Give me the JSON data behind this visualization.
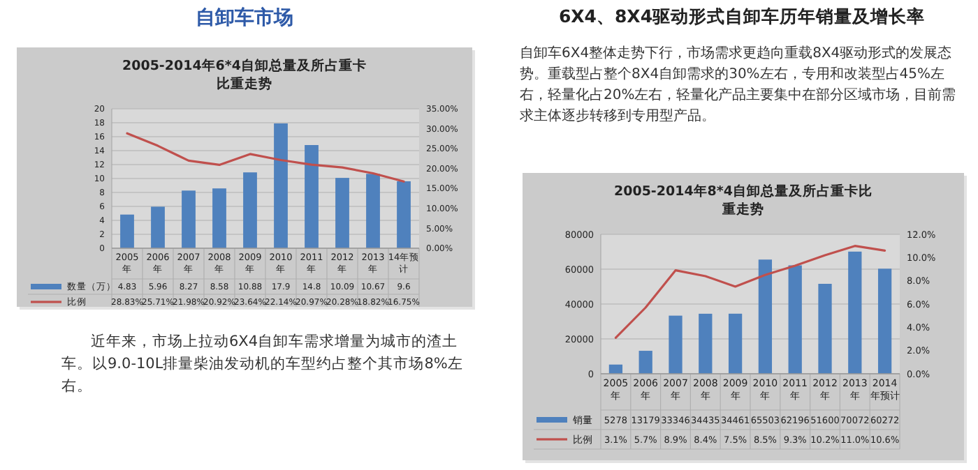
{
  "chart_data": [
    {
      "type": "other",
      "title": "自卸车市场"
    },
    {
      "type": "bar",
      "title": "2005-2014年6*4自卸总量及所占重卡比重走势",
      "categories": [
        "2005年",
        "2006年",
        "2007年",
        "2008年",
        "2009年",
        "2010年",
        "2011年",
        "2012年",
        "2013年",
        "14年预计"
      ],
      "series": [
        {
          "name": "数量（万）",
          "type": "bar",
          "color": "#4f81bd",
          "values": [
            4.83,
            5.96,
            8.27,
            8.58,
            10.88,
            17.9,
            14.8,
            10.09,
            10.67,
            9.6
          ]
        },
        {
          "name": "比例",
          "type": "line",
          "axis": "y2",
          "color": "#c0504d",
          "values": [
            28.83,
            25.71,
            21.98,
            20.92,
            23.64,
            22.14,
            20.97,
            20.28,
            18.82,
            16.75
          ],
          "value_labels": [
            "28.83%",
            "25.71%",
            "21.98%",
            "20.92%",
            "23.64%",
            "22.14%",
            "20.97%",
            "20.28%",
            "18.82%",
            "16.75%"
          ]
        }
      ],
      "ylim": [
        0,
        20
      ],
      "yticks": [
        0,
        2,
        4,
        6,
        8,
        10,
        12,
        14,
        16,
        18,
        20
      ],
      "y2lim": [
        0,
        35
      ],
      "y2ticks": [
        {
          "value": 0,
          "label": "0.00%"
        },
        {
          "value": 5,
          "label": "5.00%"
        },
        {
          "value": 10,
          "label": "10.00%"
        },
        {
          "value": 15,
          "label": "15.00%"
        },
        {
          "value": 20,
          "label": "20.00%"
        },
        {
          "value": 25,
          "label": "25.00%"
        },
        {
          "value": 30,
          "label": "30.00%"
        },
        {
          "value": 35,
          "label": "35.00%"
        }
      ],
      "grid": "y",
      "legend": "bottom",
      "data_labels": true
    },
    {
      "type": "other",
      "annotations": [
        "近年来，市场上拉动6X4自卸车需求增量为城市的渣土车。以9.0-10L排量柴油发动机的车型约占整个其市场8%左右。"
      ]
    },
    {
      "type": "other",
      "title": "6X4、8X4驱动形式自卸车历年销量及增长率",
      "annotations": [
        "自卸车6X4整体走势下行，市场需求更趋向重载8X4驱动形式的发展态势。重载型占整个8X4自卸需求的30%左右，专用和改装型占45%左右，轻量化占20%左右，轻量化产品主要集中在部分区域市场，目前需求主体逐步转移到专用型产品。"
      ]
    },
    {
      "type": "bar",
      "title": "2005-2014年8*4自卸总量及所占重卡比重走势",
      "categories": [
        "2005年",
        "2006年",
        "2007年",
        "2008年",
        "2009年",
        "2010年",
        "2011年",
        "2012年",
        "2013年",
        "2014年预计"
      ],
      "series": [
        {
          "name": "销量",
          "type": "bar",
          "color": "#4f81bd",
          "values": [
            5278,
            13179,
            33346,
            34435,
            34461,
            65503,
            62196,
            51600,
            70072,
            60272
          ]
        },
        {
          "name": "比例",
          "type": "line",
          "axis": "y2",
          "color": "#c0504d",
          "values": [
            3.1,
            5.7,
            8.9,
            8.4,
            7.5,
            8.5,
            9.3,
            10.2,
            11.0,
            10.6
          ],
          "value_labels": [
            "3.1%",
            "5.7%",
            "8.9%",
            "8.4%",
            "7.5%",
            "8.5%",
            "9.3%",
            "10.2%",
            "11.0%",
            "10.6%"
          ]
        }
      ],
      "ylim": [
        0,
        80000
      ],
      "yticks": [
        0,
        20000,
        40000,
        60000,
        80000
      ],
      "y2lim": [
        0,
        12
      ],
      "y2ticks": [
        {
          "value": 0,
          "label": "0.0%"
        },
        {
          "value": 2,
          "label": "2.0%"
        },
        {
          "value": 4,
          "label": "4.0%"
        },
        {
          "value": 6,
          "label": "6.0%"
        },
        {
          "value": 8,
          "label": "8.0%"
        },
        {
          "value": 10,
          "label": "10.0%"
        },
        {
          "value": 12,
          "label": "12.0%"
        }
      ],
      "grid": "y",
      "legend": "bottom",
      "data_labels": true
    }
  ]
}
